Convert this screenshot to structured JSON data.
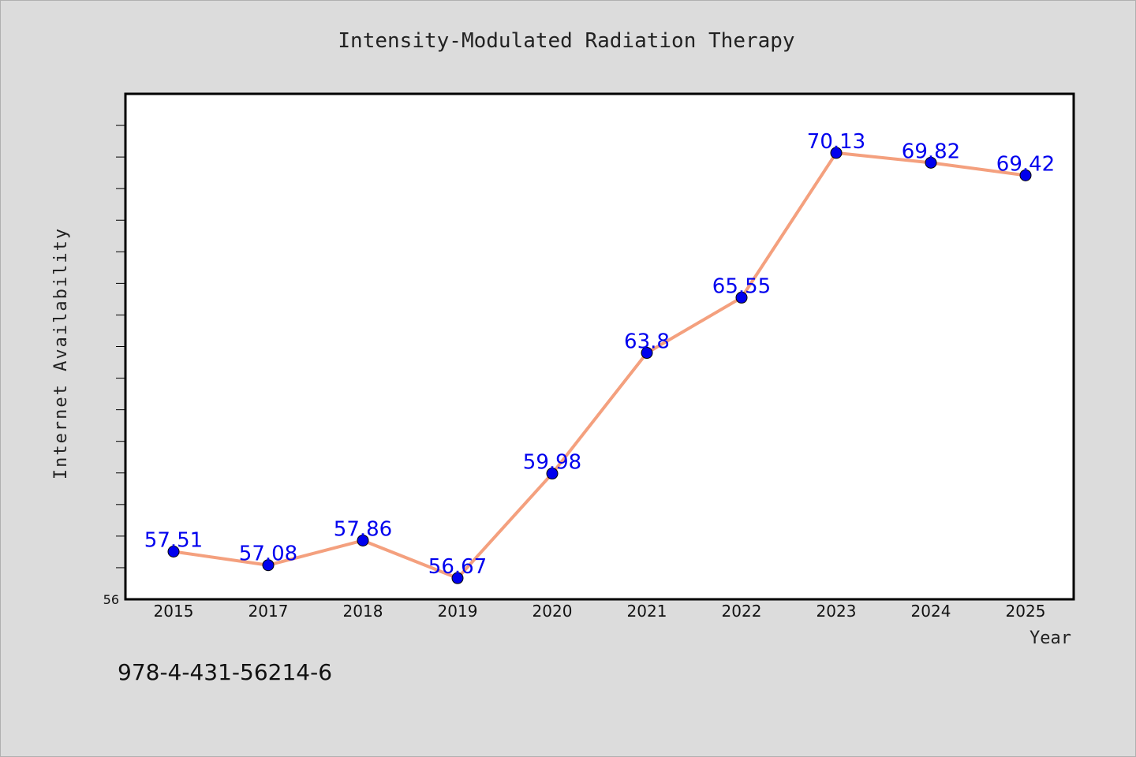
{
  "chart_data": {
    "type": "line",
    "title": "Intensity-Modulated Radiation Therapy",
    "xlabel": "Year",
    "ylabel": "Internet Availability",
    "categories": [
      "2015",
      "2017",
      "2018",
      "2019",
      "2020",
      "2021",
      "2022",
      "2023",
      "2024",
      "2025"
    ],
    "series": [
      {
        "values": [
          57.51,
          57.08,
          57.86,
          56.67,
          59.98,
          63.8,
          65.55,
          70.13,
          69.82,
          69.42
        ],
        "labels": [
          "57.51",
          "57.08",
          "57.86",
          "56.67",
          "59.98",
          "63.8",
          "65.55",
          "70.13",
          "69.82",
          "69.42"
        ],
        "line_color": "#f4a07e",
        "marker_color": "#0000ee"
      }
    ],
    "ylim": [
      56,
      72
    ],
    "y_tick_labels": [
      "56"
    ],
    "grid": false,
    "legend": "none"
  },
  "footer": {
    "isbn": "978-4-431-56214-6"
  },
  "colors": {
    "background": "#dcdcdc",
    "plot_background": "#ffffff",
    "line": "#f4a07e",
    "marker": "#0000ee",
    "data_label": "#0000ee"
  }
}
